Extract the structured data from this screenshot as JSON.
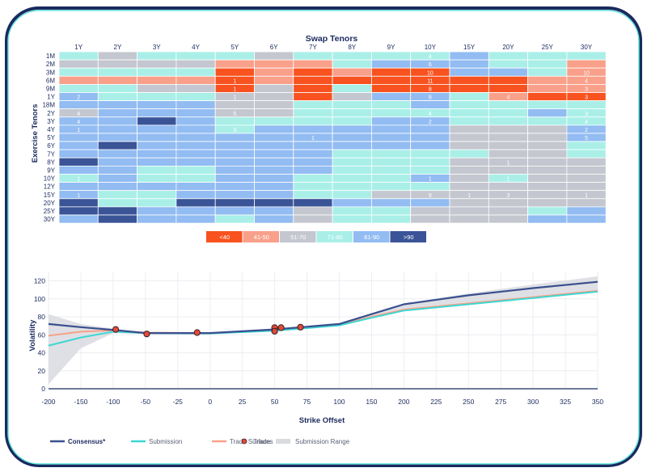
{
  "chart_data": [
    {
      "type": "heatmap",
      "title": "Swap Tenors",
      "ylabel": "Exercise Tenors",
      "x_categories": [
        "1Y",
        "2Y",
        "3Y",
        "4Y",
        "5Y",
        "6Y",
        "7Y",
        "8Y",
        "9Y",
        "10Y",
        "15Y",
        "20Y",
        "25Y",
        "30Y"
      ],
      "y_categories": [
        "1M",
        "2M",
        "3M",
        "6M",
        "9M",
        "1Y",
        "18M",
        "2Y",
        "3Y",
        "4Y",
        "5Y",
        "6Y",
        "7Y",
        "8Y",
        "9Y",
        "10Y",
        "12Y",
        "15Y",
        "20Y",
        "25Y",
        "30Y"
      ],
      "legend": [
        {
          "label": "<40",
          "color": "#f7521f"
        },
        {
          "label": "41-50",
          "color": "#f9a08a"
        },
        {
          "label": "51-70",
          "color": "#c4c7cf"
        },
        {
          "label": "71-80",
          "color": "#a9efe8"
        },
        {
          "label": "81-90",
          "color": "#92bcf2"
        },
        {
          "label": ">90",
          "color": "#3a5497"
        }
      ],
      "cells": [
        [
          3,
          2,
          3,
          3,
          3,
          2,
          3,
          3,
          3,
          3,
          4,
          3,
          3,
          3
        ],
        [
          2,
          2,
          2,
          2,
          1,
          1,
          1,
          3,
          4,
          4,
          4,
          3,
          3,
          1
        ],
        [
          3,
          3,
          3,
          3,
          0,
          1,
          0,
          1,
          0,
          0,
          4,
          4,
          3,
          1
        ],
        [
          1,
          1,
          1,
          1,
          0,
          1,
          0,
          0,
          0,
          0,
          0,
          0,
          1,
          1
        ],
        [
          3,
          3,
          2,
          2,
          0,
          2,
          0,
          3,
          0,
          0,
          0,
          0,
          1,
          1
        ],
        [
          4,
          3,
          3,
          3,
          2,
          2,
          0,
          2,
          4,
          4,
          3,
          1,
          0,
          0
        ],
        [
          4,
          4,
          4,
          4,
          2,
          2,
          3,
          3,
          3,
          4,
          3,
          3,
          3,
          3
        ],
        [
          2,
          4,
          4,
          4,
          2,
          2,
          3,
          3,
          3,
          3,
          3,
          3,
          4,
          3
        ],
        [
          4,
          4,
          5,
          4,
          3,
          3,
          3,
          3,
          4,
          4,
          3,
          3,
          3,
          3
        ],
        [
          4,
          4,
          4,
          4,
          3,
          4,
          4,
          4,
          4,
          4,
          2,
          2,
          2,
          4
        ],
        [
          4,
          4,
          4,
          4,
          4,
          4,
          4,
          4,
          4,
          4,
          2,
          2,
          2,
          4
        ],
        [
          4,
          5,
          4,
          4,
          4,
          4,
          4,
          4,
          4,
          4,
          2,
          2,
          2,
          3
        ],
        [
          4,
          4,
          4,
          4,
          4,
          4,
          4,
          3,
          3,
          3,
          3,
          2,
          2,
          3
        ],
        [
          5,
          4,
          4,
          4,
          4,
          4,
          4,
          3,
          3,
          3,
          2,
          2,
          2,
          2
        ],
        [
          4,
          4,
          3,
          3,
          4,
          4,
          4,
          3,
          3,
          3,
          2,
          2,
          2,
          2
        ],
        [
          3,
          4,
          3,
          3,
          4,
          4,
          3,
          3,
          3,
          4,
          2,
          3,
          2,
          2
        ],
        [
          4,
          4,
          4,
          4,
          4,
          4,
          3,
          3,
          3,
          3,
          2,
          2,
          2,
          2
        ],
        [
          4,
          3,
          3,
          4,
          4,
          4,
          3,
          3,
          2,
          2,
          2,
          2,
          2,
          2
        ],
        [
          5,
          3,
          3,
          5,
          5,
          5,
          5,
          4,
          4,
          4,
          2,
          2,
          2,
          2
        ],
        [
          5,
          5,
          4,
          4,
          4,
          4,
          2,
          3,
          3,
          2,
          2,
          2,
          3,
          4
        ],
        [
          4,
          5,
          4,
          4,
          3,
          4,
          2,
          3,
          3,
          2,
          2,
          2,
          4,
          4
        ]
      ],
      "cell_labels": [
        {
          "row": "1M",
          "col": "10Y",
          "text": "4"
        },
        {
          "row": "2M",
          "col": "10Y",
          "text": "6"
        },
        {
          "row": "3M",
          "col": "10Y",
          "text": "10"
        },
        {
          "row": "3M",
          "col": "30Y",
          "text": "10"
        },
        {
          "row": "6M",
          "col": "5Y",
          "text": "1"
        },
        {
          "row": "6M",
          "col": "10Y",
          "text": "11"
        },
        {
          "row": "6M",
          "col": "30Y",
          "text": "4"
        },
        {
          "row": "9M",
          "col": "5Y",
          "text": "1"
        },
        {
          "row": "9M",
          "col": "10Y",
          "text": "8"
        },
        {
          "row": "9M",
          "col": "30Y",
          "text": "3"
        },
        {
          "row": "1Y",
          "col": "1Y",
          "text": "2"
        },
        {
          "row": "1Y",
          "col": "5Y",
          "text": "1"
        },
        {
          "row": "1Y",
          "col": "10Y",
          "text": "8"
        },
        {
          "row": "1Y",
          "col": "20Y",
          "text": "4"
        },
        {
          "row": "1Y",
          "col": "30Y",
          "text": "3"
        },
        {
          "row": "2Y",
          "col": "1Y",
          "text": "4"
        },
        {
          "row": "2Y",
          "col": "5Y",
          "text": "5"
        },
        {
          "row": "2Y",
          "col": "10Y",
          "text": "4"
        },
        {
          "row": "2Y",
          "col": "30Y",
          "text": "3"
        },
        {
          "row": "3Y",
          "col": "1Y",
          "text": "4"
        },
        {
          "row": "3Y",
          "col": "10Y",
          "text": "2"
        },
        {
          "row": "3Y",
          "col": "30Y",
          "text": "4"
        },
        {
          "row": "4Y",
          "col": "1Y",
          "text": "1"
        },
        {
          "row": "4Y",
          "col": "5Y",
          "text": "3"
        },
        {
          "row": "4Y",
          "col": "30Y",
          "text": "2"
        },
        {
          "row": "5Y",
          "col": "7Y",
          "text": "1"
        },
        {
          "row": "5Y",
          "col": "30Y",
          "text": "5"
        },
        {
          "row": "8Y",
          "col": "20Y",
          "text": "1"
        },
        {
          "row": "10Y",
          "col": "1Y",
          "text": "1"
        },
        {
          "row": "10Y",
          "col": "10Y",
          "text": "1"
        },
        {
          "row": "10Y",
          "col": "20Y",
          "text": "1"
        },
        {
          "row": "15Y",
          "col": "1Y",
          "text": "1"
        },
        {
          "row": "15Y",
          "col": "10Y",
          "text": "9"
        },
        {
          "row": "15Y",
          "col": "15Y",
          "text": "1"
        },
        {
          "row": "15Y",
          "col": "20Y",
          "text": "3"
        },
        {
          "row": "15Y",
          "col": "30Y",
          "text": "1"
        }
      ]
    },
    {
      "type": "line",
      "xlabel": "Strike Offset",
      "ylabel": "Volatility",
      "xlim": [
        -200,
        350
      ],
      "ylim": [
        0,
        125
      ],
      "x_ticks": [
        -200,
        -150,
        -100,
        -50,
        -25,
        0,
        25,
        50,
        75,
        100,
        150,
        200,
        225,
        250,
        275,
        300,
        325,
        350
      ],
      "y_ticks": [
        0,
        20,
        40,
        60,
        80,
        100,
        120
      ],
      "legend_position": "bottom-left",
      "series": [
        {
          "name": "Consensus*",
          "color": "#3a4f8e",
          "x": [
            -200,
            -150,
            -100,
            -50,
            0,
            50,
            100,
            150,
            200,
            250,
            300,
            350
          ],
          "y": [
            72,
            68.5,
            65.5,
            62,
            62,
            66,
            72,
            83,
            94,
            104,
            112,
            119
          ]
        },
        {
          "name": "Submission",
          "color": "#3ed7d2",
          "x": [
            -200,
            -150,
            -100,
            -50,
            0,
            50,
            100,
            150,
            200,
            250,
            300,
            350
          ],
          "y": [
            48,
            57,
            63.5,
            62,
            61.5,
            64.5,
            70.5,
            79,
            87,
            94,
            101,
            108
          ]
        },
        {
          "name": "Trade Surface",
          "color": "#f8a187",
          "x": [
            -200,
            -150,
            -100,
            -50,
            0,
            50,
            100,
            150,
            200,
            250,
            300,
            350
          ],
          "y": [
            59,
            63.5,
            65,
            62.5,
            62,
            65.5,
            71,
            80,
            88,
            95,
            102,
            109
          ]
        }
      ],
      "band": {
        "name": "Submission Range",
        "color": "#d9dbe0",
        "x": [
          -200,
          -150,
          -100,
          -50,
          0,
          50,
          100,
          150,
          200,
          250,
          300,
          350
        ],
        "low": [
          5,
          45,
          62,
          61,
          61,
          64,
          70,
          79,
          87,
          94,
          101,
          107
        ],
        "high": [
          83,
          72,
          67,
          63,
          63,
          67,
          73,
          84,
          95,
          106,
          116,
          125
        ]
      },
      "trades": {
        "name": "Trades",
        "color": "#e04a3c",
        "points": [
          [
            -96,
            66
          ],
          [
            -49,
            61
          ],
          [
            -10,
            62.5
          ],
          [
            50,
            68
          ],
          [
            50,
            64
          ],
          [
            55,
            68
          ],
          [
            70,
            68.5
          ]
        ]
      }
    }
  ]
}
